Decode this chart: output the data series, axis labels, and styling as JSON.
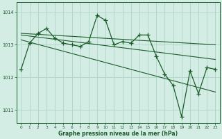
{
  "title": "Graphe pression niveau de la mer (hPa)",
  "bg_color": "#d4ede4",
  "grid_color": "#b2d8cc",
  "line_color": "#1a5c2a",
  "xlim": [
    -0.5,
    23.5
  ],
  "ylim": [
    1010.6,
    1014.3
  ],
  "yticks": [
    1011,
    1012,
    1013,
    1014
  ],
  "xticks": [
    0,
    1,
    2,
    3,
    4,
    5,
    6,
    7,
    8,
    9,
    10,
    11,
    12,
    13,
    14,
    15,
    16,
    17,
    18,
    19,
    20,
    21,
    22,
    23
  ],
  "main_x": [
    0,
    1,
    2,
    3,
    4,
    5,
    6,
    7,
    8,
    9,
    10,
    11,
    12,
    13,
    14,
    15,
    16,
    17,
    18,
    19,
    20,
    21,
    22,
    23
  ],
  "main_y": [
    1012.25,
    1013.05,
    1013.35,
    1013.5,
    1013.2,
    1013.05,
    1013.0,
    1012.95,
    1013.1,
    1013.9,
    1013.75,
    1013.0,
    1013.1,
    1013.05,
    1013.3,
    1013.3,
    1012.65,
    1012.1,
    1011.75,
    1010.8,
    1012.2,
    1011.5,
    1012.3,
    1012.25
  ],
  "trend1_x": [
    0,
    23
  ],
  "trend1_y": [
    1013.35,
    1013.0
  ],
  "trend2_x": [
    0,
    23
  ],
  "trend2_y": [
    1013.3,
    1012.55
  ],
  "trend3_x": [
    0,
    23
  ],
  "trend3_y": [
    1013.15,
    1011.55
  ]
}
